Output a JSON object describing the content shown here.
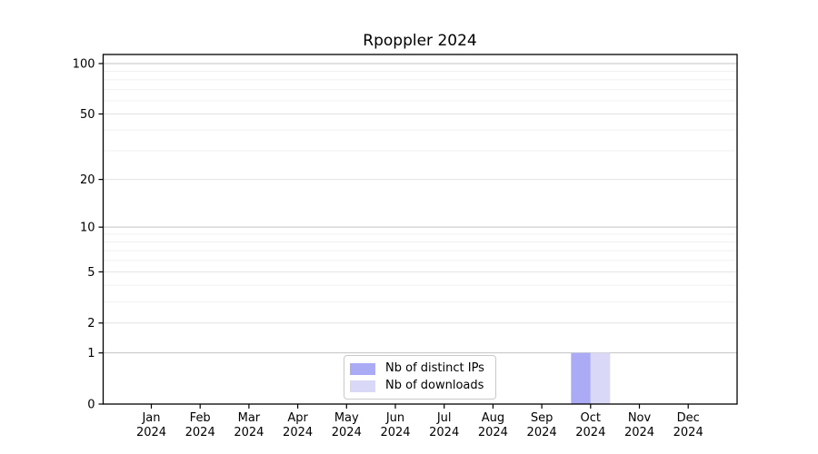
{
  "chart_data": {
    "type": "bar",
    "title": "Rpoppler 2024",
    "xlabel": "",
    "ylabel": "",
    "yscale": "log1p",
    "ylim": [
      0,
      113
    ],
    "yticks": [
      0,
      1,
      2,
      5,
      10,
      20,
      50,
      100
    ],
    "gridlines": {
      "major": [
        1,
        10,
        100
      ],
      "mid": [
        2,
        5,
        20,
        50
      ],
      "minor": [
        3,
        4,
        6,
        7,
        8,
        9,
        30,
        40,
        60,
        70,
        80,
        90
      ]
    },
    "grid": true,
    "legend_position": "bottom-center",
    "categories": [
      {
        "month": "Jan",
        "year": "2024"
      },
      {
        "month": "Feb",
        "year": "2024"
      },
      {
        "month": "Mar",
        "year": "2024"
      },
      {
        "month": "Apr",
        "year": "2024"
      },
      {
        "month": "May",
        "year": "2024"
      },
      {
        "month": "Jun",
        "year": "2024"
      },
      {
        "month": "Jul",
        "year": "2024"
      },
      {
        "month": "Aug",
        "year": "2024"
      },
      {
        "month": "Sep",
        "year": "2024"
      },
      {
        "month": "Oct",
        "year": "2024"
      },
      {
        "month": "Nov",
        "year": "2024"
      },
      {
        "month": "Dec",
        "year": "2024"
      }
    ],
    "series": [
      {
        "name": "Nb of distinct IPs",
        "color": "#aaaaf5",
        "values": [
          0,
          0,
          0,
          0,
          0,
          0,
          0,
          0,
          0,
          1,
          0,
          0
        ]
      },
      {
        "name": "Nb of downloads",
        "color": "#d9d9f7",
        "values": [
          0,
          0,
          0,
          0,
          0,
          0,
          0,
          0,
          0,
          1,
          0,
          0
        ]
      }
    ]
  },
  "colors": {
    "grid_major": "#c3c3c3",
    "grid_mid": "#e2e2e2",
    "grid_minor": "#f0f0f0",
    "axis": "#000000",
    "text": "#000000",
    "legend_border": "#c9c9c9",
    "background": "#ffffff"
  }
}
